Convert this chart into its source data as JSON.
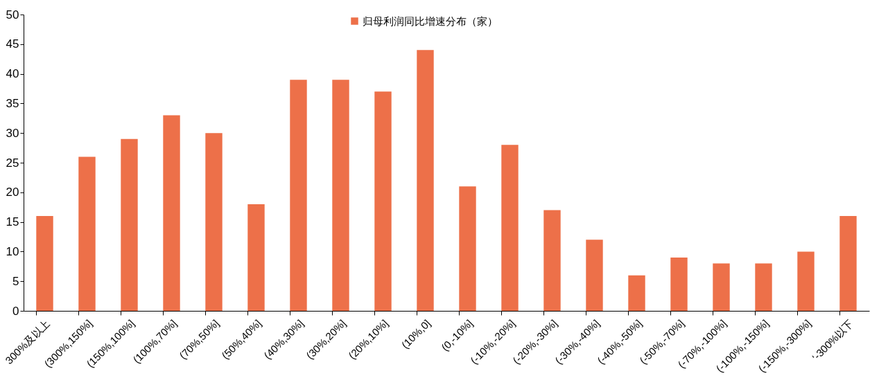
{
  "chart_data": {
    "type": "bar",
    "categories": [
      "300%及以上",
      "(300%,150%]",
      "(150%,100%]",
      "(100%,70%]",
      "(70%,50%]",
      "(50%,40%]",
      "(40%,30%]",
      "(30%,20%]",
      "(20%,10%]",
      "(10%,0]",
      "(0,-10%]",
      "(-10%,-20%]",
      "(-20%,-30%]",
      "(-30%,-40%]",
      "(-40%,-50%]",
      "(-50%,-70%]",
      "(-70%,-100%]",
      "(-100%,-150%]",
      "(-150%,-300%]",
      "‘-300%以下"
    ],
    "series": [
      {
        "name": "归母利润同比增速分布（家）",
        "color": "#ed7049",
        "values": [
          16,
          26,
          29,
          33,
          30,
          18,
          39,
          39,
          37,
          44,
          21,
          28,
          17,
          12,
          6,
          9,
          8,
          8,
          10,
          16
        ]
      }
    ],
    "ylim": [
      0,
      50
    ],
    "yticks": [
      0,
      5,
      10,
      15,
      20,
      25,
      30,
      35,
      40,
      45,
      50
    ],
    "grid": false,
    "legend": "top"
  }
}
